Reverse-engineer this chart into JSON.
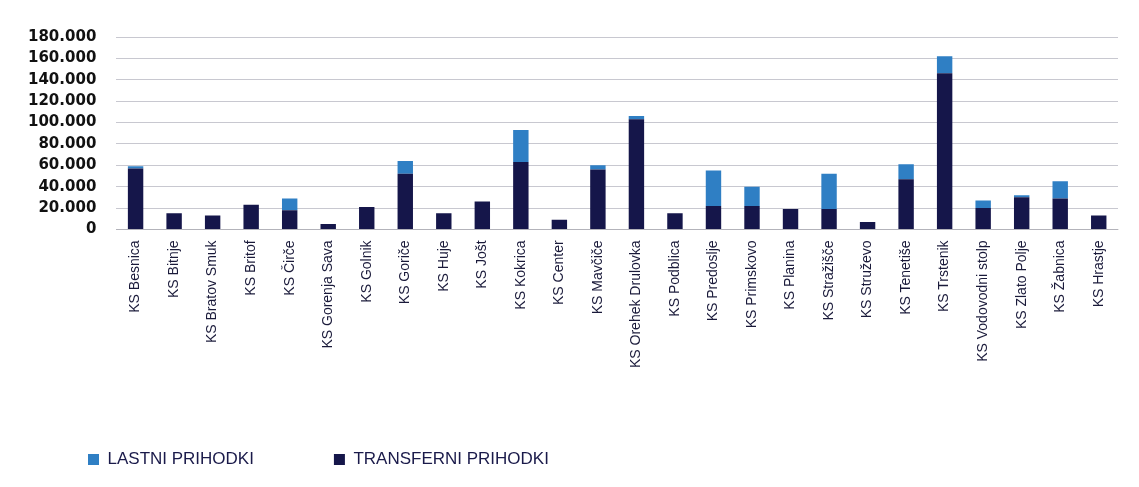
{
  "chart_data": {
    "type": "bar",
    "stacked": true,
    "categories": [
      "KS Besnica",
      "KS Bitnje",
      "KS Bratov Smuk",
      "KS Britof",
      "KS Čirče",
      "KS Gorenja Sava",
      "KS Golnik",
      "KS Goriče",
      "KS Huje",
      "KS Jošt",
      "KS Kokrica",
      "KS Center",
      "KS Mavčiče",
      "KS Orehek Drulovka",
      "KS Podblica",
      "KS Predoslje",
      "KS Primskovo",
      "KS Planina",
      "KS Stražišče",
      "KS Struževo",
      "KS Tenetiše",
      "KS Trstenik",
      "KS Vodovodni stolp",
      "KS Zlato Polje",
      "KS Žabnica",
      "KS Hrastje"
    ],
    "series": [
      {
        "name": "TRANSFERNI PRIHODKI",
        "color": "#15164a",
        "values": [
          57000,
          15000,
          13000,
          23000,
          18000,
          5000,
          21000,
          52000,
          15000,
          26000,
          63000,
          9000,
          56000,
          103000,
          15000,
          22000,
          22000,
          19000,
          19000,
          7000,
          47000,
          146000,
          20000,
          30000,
          29000,
          13000
        ]
      },
      {
        "name": "LASTNI PRIHODKI",
        "color": "#2f7fc4",
        "values": [
          2000,
          0,
          0,
          0,
          11000,
          0,
          0,
          12000,
          0,
          0,
          30000,
          0,
          4000,
          3000,
          0,
          33000,
          18000,
          0,
          33000,
          0,
          14000,
          16000,
          7000,
          2000,
          16000,
          0
        ]
      }
    ],
    "ylim": [
      0,
      180000
    ],
    "yticks": [
      {
        "value": 0,
        "label": "0"
      },
      {
        "value": 20000,
        "label": "20.000"
      },
      {
        "value": 40000,
        "label": "40.000"
      },
      {
        "value": 60000,
        "label": "60.000"
      },
      {
        "value": 80000,
        "label": "80.000"
      },
      {
        "value": 100000,
        "label": "100.000"
      },
      {
        "value": 120000,
        "label": "120.000"
      },
      {
        "value": 140000,
        "label": "140.000"
      },
      {
        "value": 160000,
        "label": "160.000"
      },
      {
        "value": 180000,
        "label": "180.000"
      }
    ],
    "grid": "y",
    "legend": "bottom left"
  }
}
